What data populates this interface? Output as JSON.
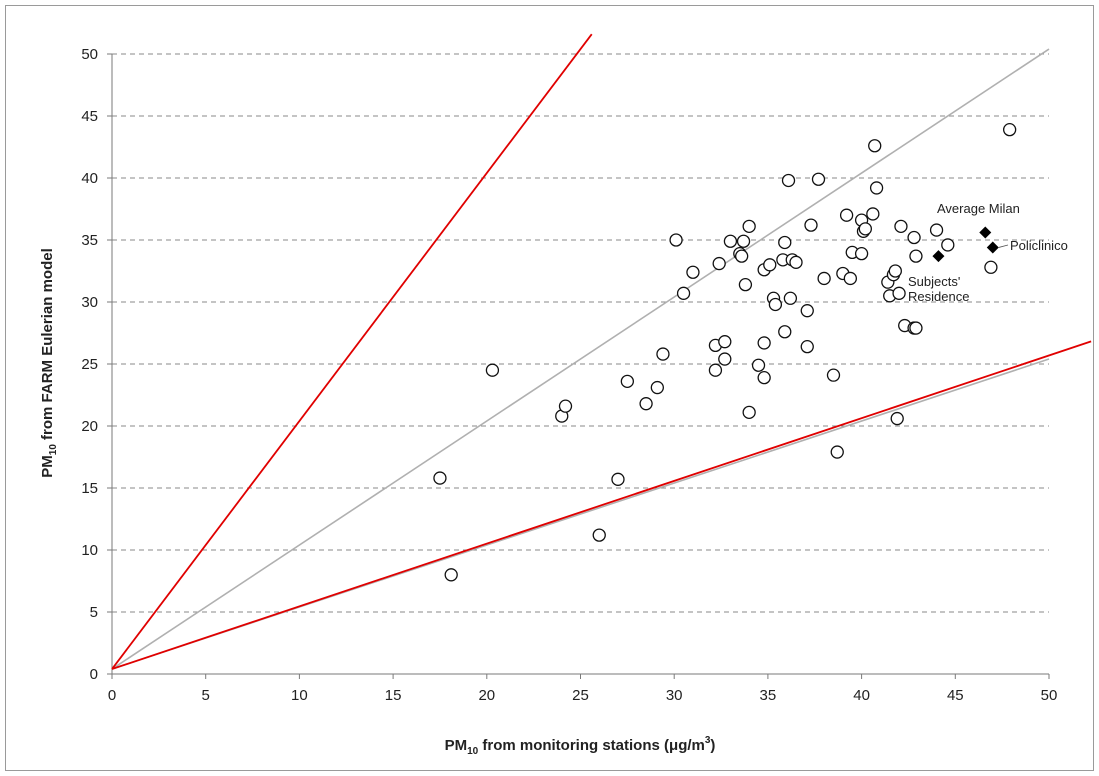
{
  "chart_data": {
    "type": "scatter",
    "xlabel_parts": {
      "pre": "PM",
      "sub": "10",
      "post": " from monitoring stations  (μg/m",
      "sup": "3",
      "end": ")"
    },
    "ylabel_parts": {
      "pre": "PM",
      "sub": "10",
      "post": " from FARM Eulerian  model"
    },
    "xlim": [
      0,
      50
    ],
    "ylim": [
      0,
      50
    ],
    "x_ticks": [
      0,
      5,
      10,
      15,
      20,
      25,
      30,
      35,
      40,
      45,
      50
    ],
    "y_ticks": [
      0,
      5,
      10,
      15,
      20,
      25,
      30,
      35,
      40,
      45,
      50
    ],
    "grid": "horizontal dashed",
    "colors": {
      "marker": "#111111",
      "identity_line": "#b0b0b0",
      "bound_line": "#e00000",
      "grid": "#8a8a8a"
    },
    "reference_lines": [
      {
        "kind": "identity",
        "slope": 1.0,
        "color": "#b0b0b0"
      },
      {
        "kind": "factor-of-two upper",
        "slope": 2.0,
        "color": "#e00000"
      },
      {
        "kind": "factor-of-two lower",
        "slope": 0.5,
        "color": "#e00000"
      },
      {
        "kind": "lower gray",
        "slope": 0.5,
        "color": "#b0b0b0"
      }
    ],
    "points": [
      [
        17.5,
        15.8
      ],
      [
        18.1,
        8.0
      ],
      [
        20.3,
        24.5
      ],
      [
        24.0,
        20.8
      ],
      [
        24.2,
        21.6
      ],
      [
        26.0,
        11.2
      ],
      [
        27.0,
        15.7
      ],
      [
        27.5,
        23.6
      ],
      [
        28.5,
        21.8
      ],
      [
        29.1,
        23.1
      ],
      [
        29.4,
        25.8
      ],
      [
        30.1,
        35.0
      ],
      [
        30.5,
        30.7
      ],
      [
        31.0,
        32.4
      ],
      [
        32.2,
        24.5
      ],
      [
        32.2,
        26.5
      ],
      [
        32.4,
        33.1
      ],
      [
        32.7,
        26.8
      ],
      [
        32.7,
        25.4
      ],
      [
        33.0,
        34.9
      ],
      [
        33.5,
        33.9
      ],
      [
        33.6,
        33.7
      ],
      [
        33.7,
        34.9
      ],
      [
        33.8,
        31.4
      ],
      [
        34.0,
        36.1
      ],
      [
        34.0,
        21.1
      ],
      [
        34.5,
        24.9
      ],
      [
        34.8,
        32.6
      ],
      [
        34.8,
        26.7
      ],
      [
        34.8,
        23.9
      ],
      [
        35.1,
        33.0
      ],
      [
        35.3,
        30.3
      ],
      [
        35.4,
        29.8
      ],
      [
        35.8,
        33.4
      ],
      [
        35.9,
        34.8
      ],
      [
        35.9,
        27.6
      ],
      [
        36.1,
        39.8
      ],
      [
        36.2,
        30.3
      ],
      [
        36.3,
        33.4
      ],
      [
        36.5,
        33.2
      ],
      [
        37.1,
        29.3
      ],
      [
        37.1,
        26.4
      ],
      [
        37.3,
        36.2
      ],
      [
        37.7,
        39.9
      ],
      [
        38.0,
        31.9
      ],
      [
        38.5,
        24.1
      ],
      [
        38.7,
        17.9
      ],
      [
        39.0,
        32.3
      ],
      [
        39.2,
        37.0
      ],
      [
        39.4,
        31.9
      ],
      [
        39.5,
        34.0
      ],
      [
        40.0,
        36.6
      ],
      [
        40.0,
        33.9
      ],
      [
        40.1,
        35.7
      ],
      [
        40.2,
        35.9
      ],
      [
        40.6,
        37.1
      ],
      [
        40.7,
        42.6
      ],
      [
        40.8,
        39.2
      ],
      [
        41.4,
        31.6
      ],
      [
        41.5,
        30.5
      ],
      [
        41.7,
        32.2
      ],
      [
        41.8,
        32.5
      ],
      [
        41.9,
        20.6
      ],
      [
        42.0,
        30.7
      ],
      [
        42.1,
        36.1
      ],
      [
        42.3,
        28.1
      ],
      [
        42.8,
        35.2
      ],
      [
        42.8,
        27.9
      ],
      [
        42.9,
        33.7
      ],
      [
        42.9,
        27.9
      ],
      [
        44.0,
        35.8
      ],
      [
        44.6,
        34.6
      ],
      [
        46.9,
        32.8
      ],
      [
        47.9,
        43.9
      ]
    ],
    "highlights": [
      {
        "label": "Average Milan",
        "x": 46.6,
        "y": 35.6
      },
      {
        "label": "Policlinico",
        "x": 47.0,
        "y": 34.4
      },
      {
        "label": "Subjects' Residence",
        "label_lines": [
          "Subjects'",
          "Residence"
        ],
        "x": 44.1,
        "y": 33.7
      }
    ]
  }
}
